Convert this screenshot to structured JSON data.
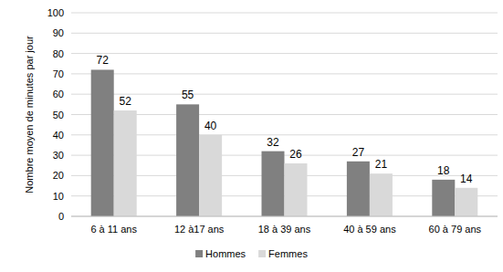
{
  "chart_data": {
    "type": "bar",
    "y_label": "Nombre moyen de minutes par jour",
    "categories": [
      "6 à 11 ans",
      "12 à17 ans",
      "18 à 39 ans",
      "40 à 59 ans",
      "60 à 79 ans"
    ],
    "series": [
      {
        "name": "Hommes",
        "color": "#808080",
        "values": [
          72,
          55,
          32,
          27,
          18
        ]
      },
      {
        "name": "Femmes",
        "color": "#d9d9d9",
        "values": [
          52,
          40,
          26,
          21,
          14
        ]
      }
    ],
    "ylim": [
      0,
      100
    ],
    "yticks": [
      0,
      10,
      20,
      30,
      40,
      50,
      60,
      70,
      80,
      90,
      100
    ],
    "grid": true,
    "legend": "bottom",
    "data_labels": true
  }
}
